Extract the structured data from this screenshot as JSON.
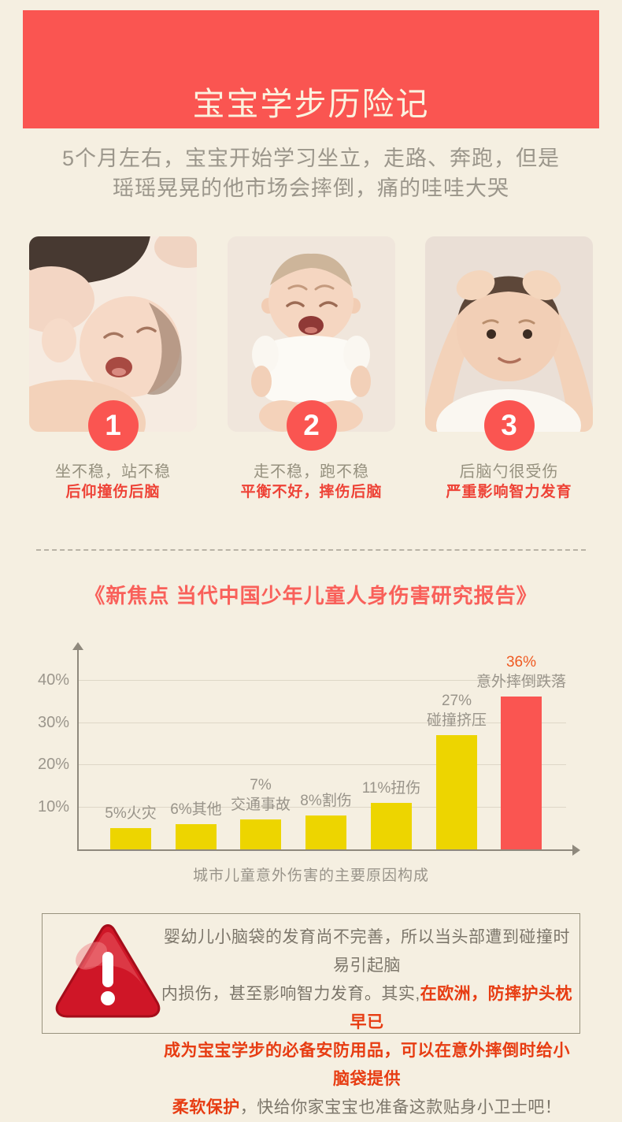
{
  "colors": {
    "background": "#f5efe1",
    "banner_red": "#fa5551",
    "bar_yellow": "#edd500",
    "bar_red": "#fa5551",
    "highlight_orange": "#ef5a22",
    "notice_red": "#e73c12",
    "grey_text": "#9b968b"
  },
  "banner": {
    "title": "宝宝学步历险记"
  },
  "intro": {
    "line1": "5个月左右，宝宝开始学习坐立，走路、奔跑，但是",
    "line2": "瑶瑶晃晃的他市场会摔倒，痛的哇哇大哭"
  },
  "cards": [
    {
      "number": "1",
      "photo": "crying-baby-lying-with-mother",
      "caption": "坐不稳，站不稳",
      "warning": "后仰撞伤后脑"
    },
    {
      "number": "2",
      "photo": "crying-baby-sitting",
      "caption": "走不稳，跑不稳",
      "warning": "平衡不好，摔伤后脑"
    },
    {
      "number": "3",
      "photo": "baby-holding-head",
      "caption": "后脑勺很受伤",
      "warning": "严重影响智力发育"
    }
  ],
  "chart_data": {
    "type": "bar",
    "title": "《新焦点 当代中国少年儿童人身伤害研究报告》",
    "xlabel": "城市儿童意外伤害的主要原因构成",
    "ylabel": "",
    "ylim": [
      0,
      45
    ],
    "grid": true,
    "legend": "none",
    "yticks": [
      {
        "label": "10%",
        "value": 10
      },
      {
        "label": "20%",
        "value": 20
      },
      {
        "label": "30%",
        "value": 30
      },
      {
        "label": "40%",
        "value": 40
      }
    ],
    "categories": [
      "火灾",
      "其他",
      "交通事故",
      "割伤",
      "扭伤",
      "碰撞挤压",
      "意外摔倒跌落"
    ],
    "values": [
      5,
      6,
      7,
      8,
      11,
      27,
      36
    ],
    "bars": [
      {
        "category": "火灾",
        "value": 5,
        "label_lines": [
          "5%火灾"
        ],
        "color": "#edd500"
      },
      {
        "category": "其他",
        "value": 6,
        "label_lines": [
          "6%其他"
        ],
        "color": "#edd500"
      },
      {
        "category": "交通事故",
        "value": 7,
        "label_lines": [
          "7%",
          "交通事故"
        ],
        "color": "#edd500"
      },
      {
        "category": "割伤",
        "value": 8,
        "label_lines": [
          "8%割伤"
        ],
        "color": "#edd500"
      },
      {
        "category": "扭伤",
        "value": 11,
        "label_lines": [
          "11%扭伤"
        ],
        "color": "#edd500"
      },
      {
        "category": "碰撞挤压",
        "value": 27,
        "label_lines": [
          "27%",
          "碰撞挤压"
        ],
        "color": "#edd500"
      },
      {
        "category": "意外摔倒跌落",
        "value": 36,
        "label_lines": [
          "36%",
          "意外摔倒跌落"
        ],
        "color": "#fa5551",
        "label_highlight_color": "#ef5a22"
      }
    ]
  },
  "notice": {
    "icon": "warning-triangle",
    "lines": [
      [
        {
          "text": "婴幼儿小脑袋的发育尚不完善，所以当头部遭到碰撞时易引起脑",
          "style": "grey"
        }
      ],
      [
        {
          "text": "内损伤，甚至影响智力发育。其实,",
          "style": "grey"
        },
        {
          "text": "在欧洲，防摔护头枕早已",
          "style": "red"
        }
      ],
      [
        {
          "text": "成为宝宝学步的必备安防用品，可以在意外摔倒时给小脑袋提供",
          "style": "red"
        }
      ],
      [
        {
          "text": "柔软保护",
          "style": "red"
        },
        {
          "text": "，快给你家宝宝也准备这款贴身小卫士吧！",
          "style": "grey"
        }
      ]
    ]
  }
}
